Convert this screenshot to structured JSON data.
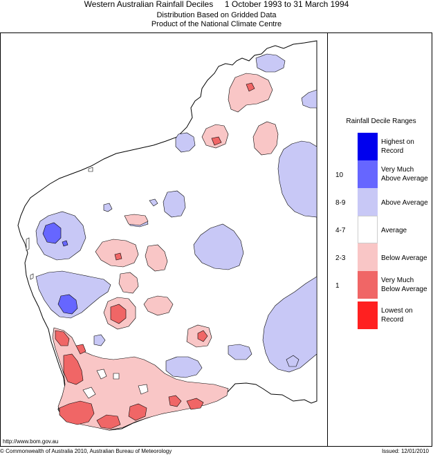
{
  "header": {
    "title": "Western Australian Rainfall Deciles     1 October 1993 to 31 March 1994",
    "subtitle1": "Distribution Based on Gridded Data",
    "subtitle2": "Product of the National Climate Centre"
  },
  "legend": {
    "title": "Rainfall Decile Ranges",
    "items": [
      {
        "label": "Highest on Record",
        "decile": "",
        "color": "#0000ee"
      },
      {
        "label": "Very Much Above Average",
        "decile": "10",
        "color": "#6666ff"
      },
      {
        "label": "Above Average",
        "decile": "8-9",
        "color": "#c8c8f6"
      },
      {
        "label": "Average",
        "decile": "4-7",
        "color": "#ffffff"
      },
      {
        "label": "Below Average",
        "decile": "2-3",
        "color": "#f9c6c6"
      },
      {
        "label": "Very Much Below Average",
        "decile": "1",
        "color": "#f06666"
      },
      {
        "label": "Lowest on Record",
        "decile": "",
        "color": "#ff2020"
      }
    ]
  },
  "footer": {
    "url": "http://www.bom.gov.au",
    "copyright": "© Commonwealth of Australia 2010, Australian Bureau of Meteorology",
    "issued": "Issued: 12/01/2010"
  }
}
